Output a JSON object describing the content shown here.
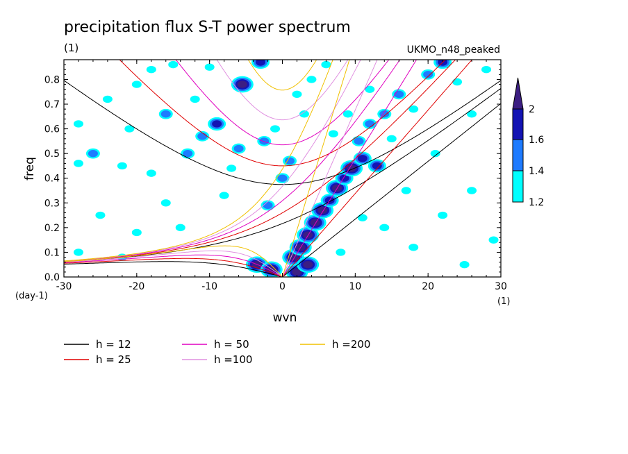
{
  "chart_data": {
    "type": "line",
    "title": "precipitation flux S-T power spectrum",
    "subtitle_left": "(1)",
    "subtitle_right": "UKMO_n48_peaked",
    "xlabel": "wvn",
    "ylabel": "freq",
    "x_unit_label": "(1)",
    "y_unit_label": "(day-1)",
    "xlim": [
      -30,
      30
    ],
    "ylim": [
      0,
      0.88
    ],
    "x_ticks": [
      -30,
      -20,
      -10,
      0,
      10,
      20,
      30
    ],
    "x_tick_labels": [
      "-30",
      "-20",
      "-10",
      "0",
      "10",
      "20",
      "30"
    ],
    "y_ticks": [
      0,
      0.1,
      0.2,
      0.3,
      0.4,
      0.5,
      0.6,
      0.7,
      0.8
    ],
    "y_tick_labels": [
      "0.0",
      "0.1",
      "0.2",
      "0.3",
      "0.4",
      "0.5",
      "0.6",
      "0.7",
      "0.8"
    ],
    "colorbar": {
      "levels": [
        1.2,
        1.4,
        1.6,
        2
      ],
      "labels": [
        "1.2",
        "1.4",
        "1.6",
        "2"
      ],
      "colors": [
        "#00ffff",
        "#1e7bff",
        "#1414b4",
        "#3c1e82"
      ]
    },
    "series": [
      {
        "name": "h = 12",
        "h": 12,
        "color": "#000000"
      },
      {
        "name": "h = 25",
        "h": 25,
        "color": "#e00000"
      },
      {
        "name": "h = 50",
        "h": 50,
        "color": "#e000c0"
      },
      {
        "name": "h =100",
        "h": 100,
        "color": "#e090e0"
      },
      {
        "name": "h =200",
        "h": 200,
        "color": "#f0c000"
      }
    ],
    "contour_blobs": [
      {
        "x": 1.5,
        "y": 0.08,
        "level": 4
      },
      {
        "x": 2.5,
        "y": 0.12,
        "level": 4
      },
      {
        "x": 3.5,
        "y": 0.17,
        "level": 4
      },
      {
        "x": 4.5,
        "y": 0.22,
        "level": 4
      },
      {
        "x": 5.5,
        "y": 0.27,
        "level": 4
      },
      {
        "x": 6.5,
        "y": 0.31,
        "level": 3
      },
      {
        "x": 7.5,
        "y": 0.36,
        "level": 4
      },
      {
        "x": 8.5,
        "y": 0.4,
        "level": 3
      },
      {
        "x": 9.5,
        "y": 0.44,
        "level": 4
      },
      {
        "x": 11,
        "y": 0.48,
        "level": 3
      },
      {
        "x": 13,
        "y": 0.45,
        "level": 3
      },
      {
        "x": 10.5,
        "y": 0.55,
        "level": 2
      },
      {
        "x": 12,
        "y": 0.62,
        "level": 2
      },
      {
        "x": 14,
        "y": 0.66,
        "level": 2
      },
      {
        "x": 16,
        "y": 0.74,
        "level": 2
      },
      {
        "x": 20,
        "y": 0.82,
        "level": 2
      },
      {
        "x": 22,
        "y": 0.87,
        "level": 3
      },
      {
        "x": -3.5,
        "y": 0.05,
        "level": 4
      },
      {
        "x": -1.5,
        "y": 0.03,
        "level": 4
      },
      {
        "x": 2,
        "y": 0.02,
        "level": 4
      },
      {
        "x": 3.5,
        "y": 0.05,
        "level": 4
      },
      {
        "x": -9,
        "y": 0.62,
        "level": 3
      },
      {
        "x": -11,
        "y": 0.57,
        "level": 2
      },
      {
        "x": -13,
        "y": 0.5,
        "level": 2
      },
      {
        "x": -6,
        "y": 0.52,
        "level": 2
      },
      {
        "x": -3,
        "y": 0.87,
        "level": 3
      },
      {
        "x": -5.5,
        "y": 0.78,
        "level": 4
      },
      {
        "x": -2.5,
        "y": 0.55,
        "level": 2
      },
      {
        "x": -1,
        "y": 0.6,
        "level": 1
      },
      {
        "x": 0,
        "y": 0.4,
        "level": 2
      },
      {
        "x": -2,
        "y": 0.29,
        "level": 2
      },
      {
        "x": -16,
        "y": 0.66,
        "level": 2
      },
      {
        "x": -21,
        "y": 0.6,
        "level": 1
      },
      {
        "x": -26,
        "y": 0.5,
        "level": 2
      },
      {
        "x": -28,
        "y": 0.46,
        "level": 1
      },
      {
        "x": -22,
        "y": 0.45,
        "level": 1
      },
      {
        "x": -18,
        "y": 0.42,
        "level": 1
      },
      {
        "x": -24,
        "y": 0.72,
        "level": 1
      },
      {
        "x": -20,
        "y": 0.78,
        "level": 1
      },
      {
        "x": -15,
        "y": 0.86,
        "level": 1
      },
      {
        "x": -12,
        "y": 0.72,
        "level": 1
      },
      {
        "x": -16,
        "y": 0.3,
        "level": 1
      },
      {
        "x": -8,
        "y": 0.33,
        "level": 1
      },
      {
        "x": -14,
        "y": 0.2,
        "level": 1
      },
      {
        "x": -20,
        "y": 0.18,
        "level": 1
      },
      {
        "x": -25,
        "y": 0.25,
        "level": 1
      },
      {
        "x": -28,
        "y": 0.1,
        "level": 1
      },
      {
        "x": -22,
        "y": 0.08,
        "level": 1
      },
      {
        "x": -28,
        "y": 0.62,
        "level": 1
      },
      {
        "x": -10,
        "y": 0.85,
        "level": 1
      },
      {
        "x": -18,
        "y": 0.84,
        "level": 1
      },
      {
        "x": 3,
        "y": 0.66,
        "level": 1
      },
      {
        "x": 4,
        "y": 0.8,
        "level": 1
      },
      {
        "x": 6,
        "y": 0.86,
        "level": 1
      },
      {
        "x": 7,
        "y": 0.58,
        "level": 1
      },
      {
        "x": 9,
        "y": 0.66,
        "level": 1
      },
      {
        "x": 12,
        "y": 0.76,
        "level": 1
      },
      {
        "x": 15,
        "y": 0.56,
        "level": 1
      },
      {
        "x": 18,
        "y": 0.68,
        "level": 1
      },
      {
        "x": 24,
        "y": 0.79,
        "level": 1
      },
      {
        "x": 26,
        "y": 0.66,
        "level": 1
      },
      {
        "x": 28,
        "y": 0.84,
        "level": 1
      },
      {
        "x": 17,
        "y": 0.35,
        "level": 1
      },
      {
        "x": 21,
        "y": 0.5,
        "level": 1
      },
      {
        "x": 14,
        "y": 0.2,
        "level": 1
      },
      {
        "x": 18,
        "y": 0.12,
        "level": 1
      },
      {
        "x": 22,
        "y": 0.25,
        "level": 1
      },
      {
        "x": 26,
        "y": 0.35,
        "level": 1
      },
      {
        "x": 29,
        "y": 0.15,
        "level": 1
      },
      {
        "x": 25,
        "y": 0.05,
        "level": 1
      },
      {
        "x": 8,
        "y": 0.1,
        "level": 1
      },
      {
        "x": 11,
        "y": 0.24,
        "level": 1
      },
      {
        "x": 1,
        "y": 0.47,
        "level": 2
      },
      {
        "x": -7,
        "y": 0.44,
        "level": 1
      },
      {
        "x": 2,
        "y": 0.74,
        "level": 1
      }
    ]
  }
}
